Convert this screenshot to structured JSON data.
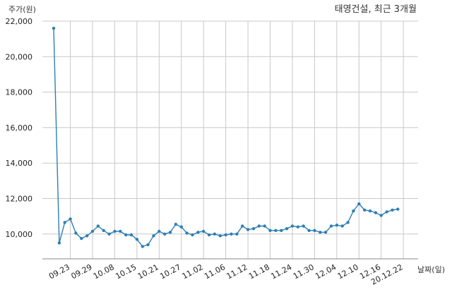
{
  "chart_data": {
    "type": "line",
    "title": "태영건설, 최근 3개월",
    "ylabel": "주가(원)",
    "xlabel": "날짜(일)",
    "ylim": [
      8600,
      22000
    ],
    "yticks": [
      10000,
      12000,
      14000,
      16000,
      18000,
      20000,
      22000
    ],
    "ytick_labels": [
      "10,000",
      "12,000",
      "14,000",
      "16,000",
      "18,000",
      "20,000",
      "22,000"
    ],
    "xtick_labels": [
      "09.23",
      "09.29",
      "10.08",
      "10.15",
      "10.21",
      "10.27",
      "11.02",
      "11.06",
      "11.12",
      "11.18",
      "11.24",
      "11.30",
      "12.04",
      "12.10",
      "12.16",
      "20.12.22"
    ],
    "xtick_index": [
      3,
      7,
      11,
      15,
      19,
      23,
      27,
      31,
      35,
      39,
      43,
      47,
      51,
      55,
      59,
      63
    ],
    "grid": true,
    "series": [
      {
        "values": [
          21600,
          9500,
          10650,
          10850,
          10050,
          9750,
          9900,
          10150,
          10450,
          10200,
          10000,
          10150,
          10150,
          9950,
          9950,
          9700,
          9300,
          9400,
          9900,
          10150,
          10000,
          10100,
          10550,
          10400,
          10050,
          9950,
          10100,
          10150,
          9950,
          10000,
          9900,
          9950,
          10000,
          10000,
          10450,
          10250,
          10300,
          10450,
          10450,
          10200,
          10200,
          10200,
          10300,
          10450,
          10400,
          10450,
          10200,
          10200,
          10100,
          10100,
          10450,
          10500,
          10450,
          10650,
          11300,
          11700,
          11350,
          11300,
          11200,
          11050,
          11250,
          11350,
          11400
        ]
      }
    ]
  }
}
